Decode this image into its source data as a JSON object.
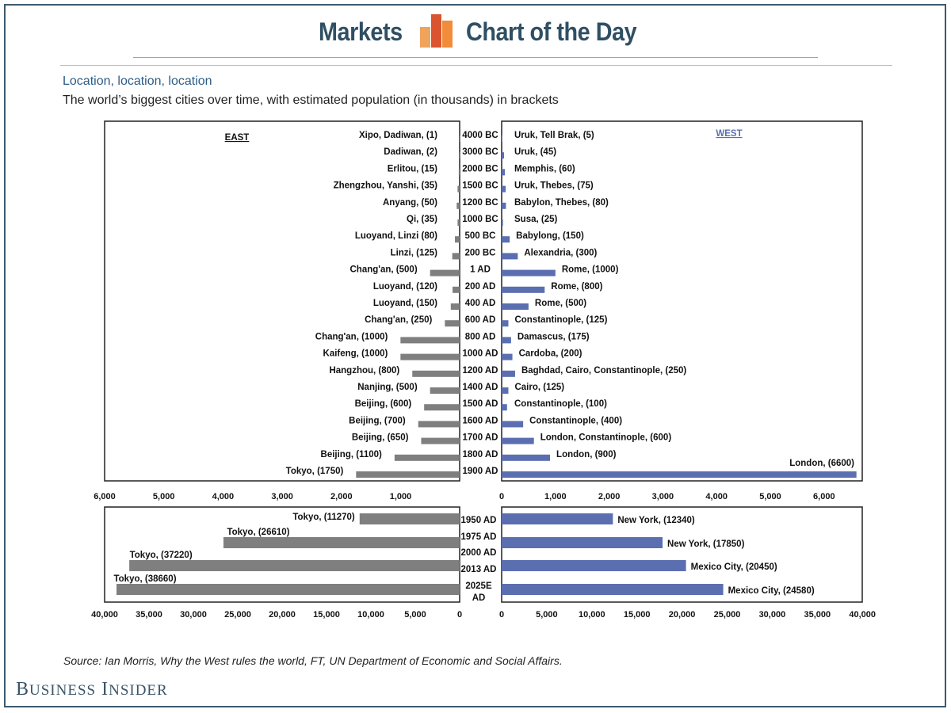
{
  "header": {
    "left": "Markets",
    "right": "Chart of the Day"
  },
  "subtitle": "Location, location, location",
  "description": "The world’s biggest cities over time, with estimated population (in thousands) in brackets",
  "source": "Source:  Ian Morris, Why the West rules the world, FT, UN Department of Economic and Social Affairs.",
  "brand": "Business Insider",
  "colors": {
    "east": "#7f7f7f",
    "west": "#5b6fb0",
    "header_text": "#2f4f63",
    "subtitle": "#2d5c87"
  },
  "chart_data": [
    {
      "type": "bar",
      "orientation": "horizontal-butterfly",
      "panel_labels": {
        "east": "EAST",
        "west": "WEST"
      },
      "ylabel": "",
      "xlim": [
        0,
        6600
      ],
      "xticks_east": [
        "6,000",
        "5,000",
        "4,000",
        "3,000",
        "2,000",
        "1,000"
      ],
      "xticks_west": [
        "0",
        "1,000",
        "2,000",
        "3,000",
        "4,000",
        "5,000",
        "6,000"
      ],
      "rows": [
        {
          "year": "4000 BC",
          "east": {
            "label": "Xipo, Dadiwan, (1)",
            "value": 1
          },
          "west": {
            "label": "Uruk, Tell Brak, (5)",
            "value": 5
          }
        },
        {
          "year": "3000 BC",
          "east": {
            "label": "Dadiwan, (2)",
            "value": 2
          },
          "west": {
            "label": "Uruk, (45)",
            "value": 45
          }
        },
        {
          "year": "2000 BC",
          "east": {
            "label": "Erlitou, (15)",
            "value": 15
          },
          "west": {
            "label": "Memphis, (60)",
            "value": 60
          }
        },
        {
          "year": "1500 BC",
          "east": {
            "label": "Zhengzhou, Yanshi, (35)",
            "value": 35
          },
          "west": {
            "label": "Uruk, Thebes, (75)",
            "value": 75
          }
        },
        {
          "year": "1200 BC",
          "east": {
            "label": "Anyang, (50)",
            "value": 50
          },
          "west": {
            "label": "Babylon, Thebes, (80)",
            "value": 80
          }
        },
        {
          "year": "1000 BC",
          "east": {
            "label": "Qi, (35)",
            "value": 35
          },
          "west": {
            "label": "Susa, (25)",
            "value": 25
          }
        },
        {
          "year": "500 BC",
          "east": {
            "label": "Luoyand, Linzi (80)",
            "value": 80
          },
          "west": {
            "label": "Babylong, (150)",
            "value": 150
          }
        },
        {
          "year": "200 BC",
          "east": {
            "label": "Linzi, (125)",
            "value": 125
          },
          "west": {
            "label": "Alexandria, (300)",
            "value": 300
          }
        },
        {
          "year": "1 AD",
          "east": {
            "label": "Chang'an, (500)",
            "value": 500
          },
          "west": {
            "label": "Rome, (1000)",
            "value": 1000
          }
        },
        {
          "year": "200 AD",
          "east": {
            "label": "Luoyand, (120)",
            "value": 120
          },
          "west": {
            "label": "Rome, (800)",
            "value": 800
          }
        },
        {
          "year": "400 AD",
          "east": {
            "label": "Luoyand, (150)",
            "value": 150
          },
          "west": {
            "label": "Rome, (500)",
            "value": 500
          }
        },
        {
          "year": "600 AD",
          "east": {
            "label": "Chang'an,  (250)",
            "value": 250
          },
          "west": {
            "label": "Constantinople, (125)",
            "value": 125
          }
        },
        {
          "year": "800 AD",
          "east": {
            "label": "Chang'an,  (1000)",
            "value": 1000
          },
          "west": {
            "label": "Damascus, (175)",
            "value": 175
          }
        },
        {
          "year": "1000 AD",
          "east": {
            "label": "Kaifeng, (1000)",
            "value": 1000
          },
          "west": {
            "label": "Cardoba, (200)",
            "value": 200
          }
        },
        {
          "year": "1200 AD",
          "east": {
            "label": "Hangzhou, (800)",
            "value": 800
          },
          "west": {
            "label": "Baghdad, Cairo, Constantinople, (250)",
            "value": 250
          }
        },
        {
          "year": "1400 AD",
          "east": {
            "label": "Nanjing, (500)",
            "value": 500
          },
          "west": {
            "label": "Cairo, (125)",
            "value": 125
          }
        },
        {
          "year": "1500 AD",
          "east": {
            "label": "Beijing, (600)",
            "value": 600
          },
          "west": {
            "label": "Constantinople, (100)",
            "value": 100
          }
        },
        {
          "year": "1600 AD",
          "east": {
            "label": "Beijing, (700)",
            "value": 700
          },
          "west": {
            "label": "Constantinople, (400)",
            "value": 400
          }
        },
        {
          "year": "1700 AD",
          "east": {
            "label": "Beijing, (650)",
            "value": 650
          },
          "west": {
            "label": "London, Constantinople,  (600)",
            "value": 600
          }
        },
        {
          "year": "1800 AD",
          "east": {
            "label": "Beijing, (1100)",
            "value": 1100
          },
          "west": {
            "label": "London, (900)",
            "value": 900
          }
        },
        {
          "year": "1900 AD",
          "east": {
            "label": "Tokyo, (1750)",
            "value": 1750
          },
          "west": {
            "label": "London, (6600)",
            "value": 6600
          }
        }
      ]
    },
    {
      "type": "bar",
      "orientation": "horizontal-butterfly",
      "xlim": [
        0,
        40000
      ],
      "xticks_east": [
        "40,000",
        "35,000",
        "30,000",
        "25,000",
        "20,000",
        "15,000",
        "10,000",
        "5,000",
        "0"
      ],
      "xticks_west": [
        "0",
        "5,000",
        "10,000",
        "15,000",
        "20,000",
        "25,000",
        "30,000",
        "35,000",
        "40,000"
      ],
      "rows": [
        {
          "year": "1950 AD",
          "east": {
            "label": "Tokyo, (11270)",
            "value": 11270
          },
          "west": {
            "label": "New York, (12340)",
            "value": 12340
          }
        },
        {
          "year": "1975 AD",
          "east": {
            "label": "Tokyo, (26610)",
            "value": 26610
          },
          "west": {
            "label": "New York, (17850)",
            "value": 17850
          }
        },
        {
          "year": "2000 AD",
          "east": {
            "label": "Tokyo, (37220)",
            "value": 37220
          },
          "west": {
            "label": "Mexico City, (20450)",
            "value": 20450
          }
        },
        {
          "year": "2013 AD",
          "east": {
            "label": "Tokyo, (38660)",
            "value": 38660
          },
          "west": {
            "label": "Mexico City, (24580)",
            "value": 24580
          }
        },
        {
          "year": "2025E AD",
          "east": null,
          "west": null
        }
      ]
    }
  ]
}
